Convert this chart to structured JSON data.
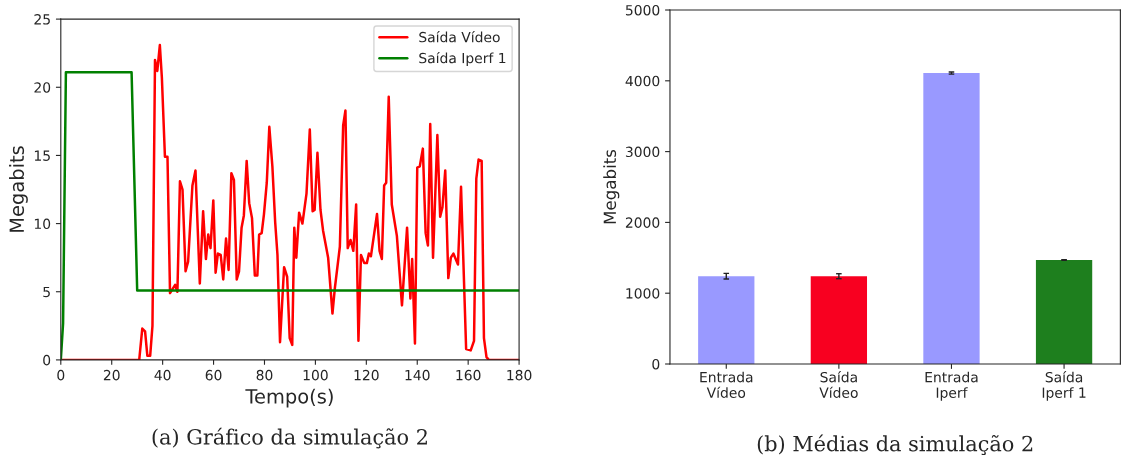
{
  "chart_data": [
    {
      "type": "line",
      "xlabel": "Tempo(s)",
      "ylabel": "Megabits",
      "xlim": [
        0,
        180
      ],
      "ylim": [
        0,
        25
      ],
      "xticks": [
        0,
        20,
        40,
        60,
        80,
        100,
        120,
        140,
        160,
        180
      ],
      "yticks": [
        0,
        5,
        10,
        15,
        20,
        25
      ],
      "grid": false,
      "legend": "top right",
      "annotations": [
        "(a) Gráfico da simulação 2"
      ],
      "series": [
        {
          "name": "Saída Vídeo",
          "color": "#ff0000",
          "x": [
            0,
            30.8,
            32,
            33.1,
            34,
            35.1,
            36,
            37,
            37.9,
            38.9,
            39.7,
            40.9,
            41.9,
            42.9,
            44.9,
            45.8,
            46.8,
            47.8,
            49,
            50,
            51.7,
            52.9,
            54.6,
            55.9,
            57,
            57.9,
            58.8,
            59.9,
            60.8,
            61.7,
            62.8,
            63.8,
            64.9,
            65.9,
            67,
            68,
            69.1,
            70,
            71,
            71.9,
            73,
            74,
            75.1,
            76.2,
            77.2,
            77.9,
            78.9,
            79.8,
            80.9,
            81.9,
            83.1,
            84.2,
            85.1,
            86.1,
            87.7,
            88.9,
            89.9,
            90.9,
            91.7,
            92.5,
            93.6,
            94.9,
            96.5,
            97.8,
            98.9,
            99.7,
            100.8,
            102,
            103,
            105,
            106.7,
            107.6,
            109.6,
            110.9,
            111.8,
            112.7,
            113.8,
            114.9,
            116,
            116.9,
            117.9,
            119.2,
            120.2,
            121,
            121.8,
            124.2,
            125.2,
            126.1,
            127,
            127.8,
            128.8,
            130,
            132,
            134,
            136,
            137.3,
            138,
            139.1,
            140,
            141,
            142.2,
            143.3,
            144.2,
            145.1,
            146.2,
            147.9,
            149,
            149.9,
            151,
            152.2,
            153.2,
            154.2,
            156,
            157.2,
            159.2,
            161,
            162.3,
            163.2,
            164.1,
            165.3,
            166.2,
            167.2,
            168.1,
            180
          ],
          "values": [
            0,
            0,
            2.3,
            2.1,
            0.3,
            0.3,
            2.5,
            22.0,
            21.2,
            23.1,
            20.7,
            14.9,
            14.9,
            4.9,
            5.5,
            5.0,
            13.1,
            12.5,
            6.5,
            7.2,
            12.8,
            13.9,
            5.6,
            10.9,
            7.4,
            9.2,
            8.2,
            11.7,
            6.4,
            7.8,
            7.7,
            5.9,
            8.9,
            6.6,
            13.7,
            13.2,
            5.9,
            6.5,
            9.7,
            10.6,
            14.6,
            11.5,
            10.4,
            6.2,
            6.2,
            9.2,
            9.3,
            10.7,
            13.0,
            17.1,
            14.2,
            10.1,
            7.7,
            1.3,
            6.8,
            6.1,
            1.6,
            1.1,
            9.7,
            7.5,
            10.8,
            10.0,
            12.2,
            16.9,
            10.9,
            11.0,
            15.2,
            11.0,
            9.5,
            7.5,
            3.4,
            5.2,
            8.3,
            17.2,
            18.3,
            8.2,
            8.8,
            8.0,
            11.4,
            1.4,
            7.7,
            7.1,
            7.1,
            7.8,
            7.6,
            10.7,
            8.0,
            7.4,
            12.8,
            13.0,
            19.3,
            11.4,
            9.1,
            4.0,
            9.7,
            4.5,
            7.4,
            1.2,
            14.1,
            14.2,
            15.5,
            9.3,
            8.4,
            17.3,
            7.5,
            16.5,
            10.5,
            11.2,
            13.9,
            6.0,
            7.5,
            7.8,
            7.0,
            12.7,
            0.8,
            0.7,
            1.4,
            13.3,
            14.7,
            14.6,
            1.6,
            0.2,
            0,
            0
          ]
        },
        {
          "name": "Saída Iperf 1",
          "color": "#008000",
          "x": [
            0,
            0.9,
            2,
            27.8,
            30,
            180
          ],
          "values": [
            0,
            2.7,
            21.1,
            21.1,
            5.1,
            5.1
          ]
        }
      ]
    },
    {
      "type": "bar",
      "ylabel": "Megabits",
      "categories": [
        "Entrada\nVídeo",
        "Saída\nVídeo",
        "Entrada\nIperf",
        "Saída\nIperf 1"
      ],
      "values": [
        1240,
        1240,
        4110,
        1470
      ],
      "errors": [
        40,
        35,
        15,
        5
      ],
      "colors": [
        "#9999ff",
        "#f80020",
        "#9999ff",
        "#1e7f1e"
      ],
      "ylim": [
        0,
        5000
      ],
      "yticks": [
        0,
        1000,
        2000,
        3000,
        4000,
        5000
      ],
      "grid": false,
      "annotations": [
        "(b) Médias da simulação 2"
      ]
    }
  ]
}
